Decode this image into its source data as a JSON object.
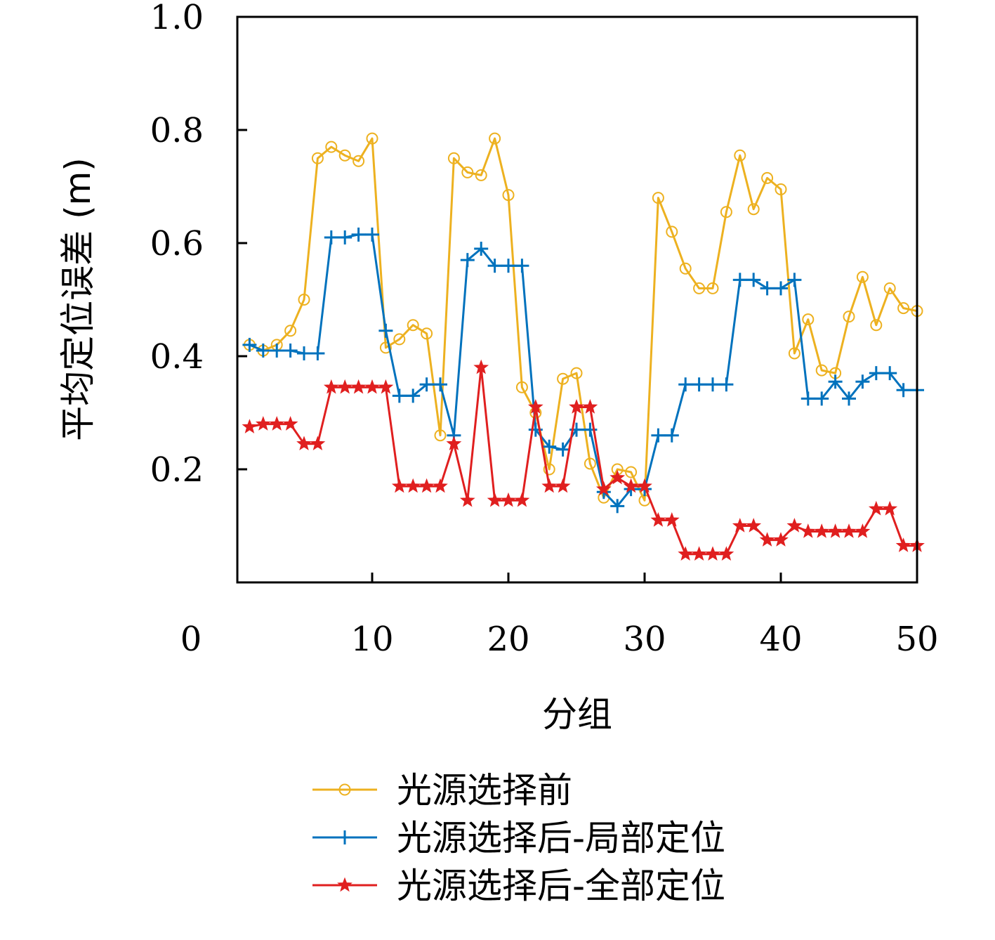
{
  "chart_data": {
    "type": "line",
    "xlabel": "分组",
    "ylabel": "平均定位误差 (m)",
    "xlim": [
      0,
      50
    ],
    "ylim": [
      0,
      1.0
    ],
    "xticks": [
      "0",
      "10",
      "20",
      "30",
      "40",
      "50"
    ],
    "yticks": [
      "0.2",
      "0.4",
      "0.6",
      "0.8",
      "1.0"
    ],
    "grid": false,
    "legend_position": "bottom",
    "x": [
      1,
      2,
      3,
      4,
      5,
      6,
      7,
      8,
      9,
      10,
      11,
      12,
      13,
      14,
      15,
      16,
      17,
      18,
      19,
      20,
      21,
      22,
      23,
      24,
      25,
      26,
      27,
      28,
      29,
      30,
      31,
      32,
      33,
      34,
      35,
      36,
      37,
      38,
      39,
      40,
      41,
      42,
      43,
      44,
      45,
      46,
      47,
      48,
      49,
      50
    ],
    "series": [
      {
        "name": "光源选择前",
        "color": "#EDB120",
        "marker": "circle",
        "values": [
          0.42,
          0.41,
          0.42,
          0.445,
          0.5,
          0.75,
          0.77,
          0.755,
          0.745,
          0.785,
          0.415,
          0.43,
          0.455,
          0.44,
          0.26,
          0.75,
          0.725,
          0.72,
          0.785,
          0.685,
          0.345,
          0.3,
          0.2,
          0.36,
          0.37,
          0.21,
          0.15,
          0.2,
          0.195,
          0.145,
          0.68,
          0.62,
          0.555,
          0.52,
          0.52,
          0.655,
          0.755,
          0.66,
          0.715,
          0.695,
          0.405,
          0.465,
          0.375,
          0.37,
          0.47,
          0.54,
          0.455,
          0.52,
          0.485,
          0.48
        ]
      },
      {
        "name": "光源选择后-局部定位",
        "color": "#0072BD",
        "marker": "plus",
        "values": [
          0.42,
          0.41,
          0.41,
          0.41,
          0.405,
          0.405,
          0.61,
          0.61,
          0.615,
          0.615,
          0.445,
          0.33,
          0.33,
          0.35,
          0.35,
          0.26,
          0.57,
          0.59,
          0.56,
          0.56,
          0.56,
          0.27,
          0.24,
          0.235,
          0.27,
          0.27,
          0.16,
          0.135,
          0.165,
          0.165,
          0.26,
          0.26,
          0.35,
          0.35,
          0.35,
          0.35,
          0.535,
          0.535,
          0.52,
          0.52,
          0.535,
          0.325,
          0.325,
          0.355,
          0.325,
          0.355,
          0.37,
          0.37,
          0.34,
          0.34
        ]
      },
      {
        "name": "光源选择后-全部定位",
        "color": "#E01F1F",
        "marker": "star",
        "values": [
          0.275,
          0.28,
          0.28,
          0.28,
          0.245,
          0.245,
          0.345,
          0.345,
          0.345,
          0.345,
          0.345,
          0.17,
          0.17,
          0.17,
          0.17,
          0.245,
          0.145,
          0.38,
          0.145,
          0.145,
          0.145,
          0.31,
          0.17,
          0.17,
          0.31,
          0.31,
          0.165,
          0.185,
          0.17,
          0.17,
          0.11,
          0.11,
          0.05,
          0.05,
          0.05,
          0.05,
          0.1,
          0.1,
          0.075,
          0.075,
          0.1,
          0.09,
          0.09,
          0.09,
          0.09,
          0.09,
          0.13,
          0.13,
          0.065,
          0.065
        ]
      }
    ]
  }
}
